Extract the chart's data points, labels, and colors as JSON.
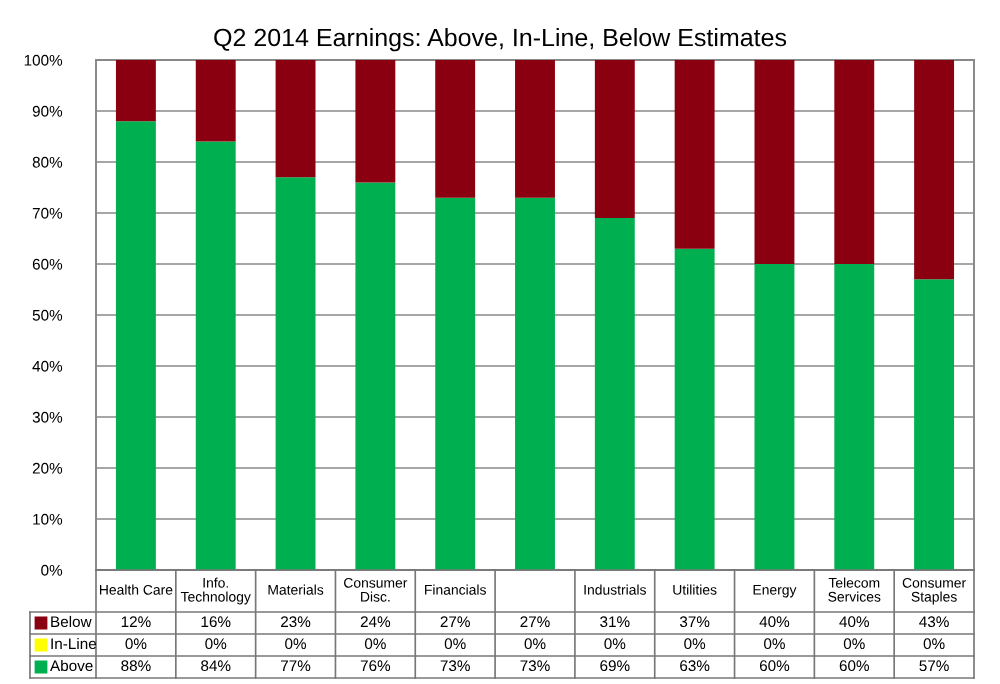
{
  "chart_data": {
    "type": "bar",
    "title": "Q2 2014 Earnings: Above, In-Line, Below Estimates",
    "categories": [
      "Health Care",
      "Info.\nTechnology",
      "Materials",
      "Consumer\nDisc.",
      "Financials",
      null,
      "Industrials",
      "Utilities",
      "Energy",
      "Telecom\nServices",
      "Consumer\nStaples"
    ],
    "stacked": true,
    "series": [
      {
        "name": "Above",
        "color": "#00b050",
        "values": [
          88,
          84,
          77,
          76,
          73,
          73,
          69,
          63,
          60,
          60,
          57
        ],
        "value_labels": [
          "88%",
          "84%",
          "77%",
          "76%",
          "73%",
          "73%",
          "69%",
          "63%",
          "60%",
          "60%",
          "57%"
        ]
      },
      {
        "name": "In-Line",
        "color": "#ffff00",
        "values": [
          0,
          0,
          0,
          0,
          0,
          0,
          0,
          0,
          0,
          0,
          0
        ],
        "value_labels": [
          "0%",
          "0%",
          "0%",
          "0%",
          "0%",
          "0%",
          "0%",
          "0%",
          "0%",
          "0%",
          "0%"
        ]
      },
      {
        "name": "Below",
        "color": "#8b0010",
        "values": [
          12,
          16,
          23,
          24,
          27,
          27,
          31,
          37,
          40,
          40,
          43
        ],
        "value_labels": [
          "12%",
          "16%",
          "23%",
          "24%",
          "27%",
          "27%",
          "31%",
          "37%",
          "40%",
          "40%",
          "43%"
        ]
      }
    ],
    "ylim": [
      0,
      100
    ],
    "yticks": [
      {
        "value": 0,
        "label": "0%"
      },
      {
        "value": 10,
        "label": "10%"
      },
      {
        "value": 20,
        "label": "20%"
      },
      {
        "value": 30,
        "label": "30%"
      },
      {
        "value": 40,
        "label": "40%"
      },
      {
        "value": 50,
        "label": "50%"
      },
      {
        "value": 60,
        "label": "60%"
      },
      {
        "value": 70,
        "label": "70%"
      },
      {
        "value": 80,
        "label": "80%"
      },
      {
        "value": 90,
        "label": "90%"
      },
      {
        "value": 100,
        "label": "100%"
      }
    ],
    "grid": "y",
    "legend": "bottom"
  }
}
